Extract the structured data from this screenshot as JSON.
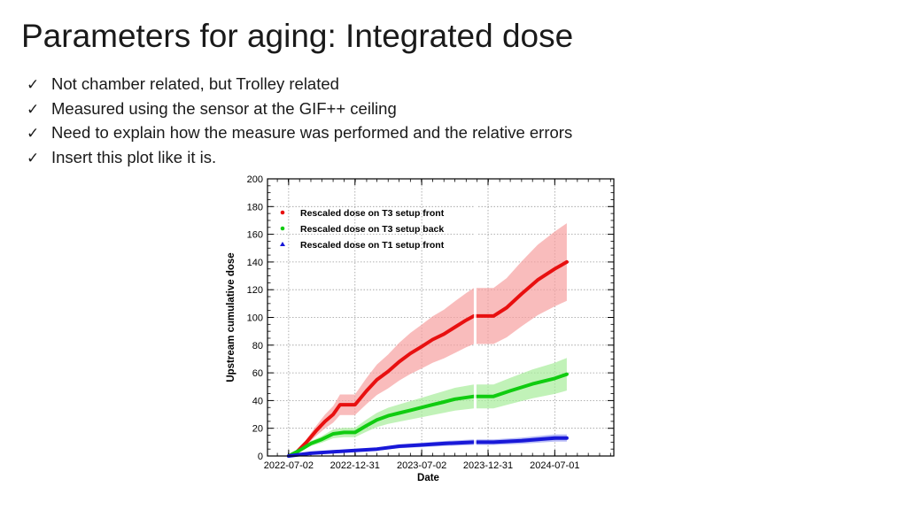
{
  "slide": {
    "title": "Parameters for aging: Integrated dose",
    "bullets": [
      "Not chamber related, but Trolley related",
      "Measured using the sensor at the GIF++ ceiling",
      "Need to explain how the measure was performed and the relative errors",
      "Insert this plot like it is."
    ],
    "bullet_icon": "check-icon"
  },
  "chart_data": {
    "type": "line",
    "title": "",
    "xlabel": "Date",
    "ylabel": "Upstream cumulative dose",
    "ylim": [
      0,
      200
    ],
    "xlim": [
      "2022-05-05",
      "2024-12-10"
    ],
    "yticks": [
      0,
      20,
      40,
      60,
      80,
      100,
      120,
      140,
      160,
      180,
      200
    ],
    "xticks": [
      "2022-07-02",
      "2022-12-31",
      "2023-07-02",
      "2023-12-31",
      "2024-07-01"
    ],
    "grid": true,
    "legend_position": "top-left",
    "series": [
      {
        "name": "Rescaled dose on T3 setup front",
        "color": "#e81010",
        "band_color": "#f6a0a0",
        "points": [
          [
            "2022-07-02",
            0
          ],
          [
            "2022-07-25",
            3
          ],
          [
            "2022-08-20",
            10
          ],
          [
            "2022-09-15",
            18
          ],
          [
            "2022-10-10",
            25
          ],
          [
            "2022-11-01",
            30
          ],
          [
            "2022-11-20",
            37
          ],
          [
            "2022-12-31",
            37
          ],
          [
            "2023-02-01",
            47
          ],
          [
            "2023-03-01",
            55
          ],
          [
            "2023-04-01",
            61
          ],
          [
            "2023-05-01",
            68
          ],
          [
            "2023-06-01",
            74
          ],
          [
            "2023-07-02",
            79
          ],
          [
            "2023-08-01",
            84
          ],
          [
            "2023-09-01",
            88
          ],
          [
            "2023-10-01",
            93
          ],
          [
            "2023-11-01",
            98
          ],
          [
            "2023-11-22",
            101
          ],
          [
            "2024-01-15",
            101
          ],
          [
            "2024-02-20",
            107
          ],
          [
            "2024-04-01",
            117
          ],
          [
            "2024-05-15",
            127
          ],
          [
            "2024-07-01",
            135
          ],
          [
            "2024-08-03",
            140
          ]
        ],
        "band_half_width_fraction": 0.2
      },
      {
        "name": "Rescaled dose on T3 setup back",
        "color": "#10cc10",
        "band_color": "#a6ec9a",
        "points": [
          [
            "2022-07-02",
            0
          ],
          [
            "2022-08-01",
            4
          ],
          [
            "2022-09-01",
            9
          ],
          [
            "2022-10-01",
            12
          ],
          [
            "2022-11-01",
            16
          ],
          [
            "2022-12-01",
            17
          ],
          [
            "2022-12-31",
            17
          ],
          [
            "2023-02-01",
            22
          ],
          [
            "2023-03-01",
            26
          ],
          [
            "2023-04-01",
            29
          ],
          [
            "2023-05-01",
            31
          ],
          [
            "2023-06-01",
            33
          ],
          [
            "2023-07-02",
            35
          ],
          [
            "2023-08-01",
            37
          ],
          [
            "2023-09-01",
            39
          ],
          [
            "2023-10-01",
            41
          ],
          [
            "2023-11-22",
            43
          ],
          [
            "2024-01-15",
            43
          ],
          [
            "2024-03-01",
            47
          ],
          [
            "2024-05-01",
            52
          ],
          [
            "2024-07-01",
            56
          ],
          [
            "2024-08-03",
            59
          ]
        ],
        "band_half_width_fraction": 0.2
      },
      {
        "name": "Rescaled dose on T1 setup front",
        "color": "#1818d8",
        "band_color": "#9aa0f2",
        "points": [
          [
            "2022-07-02",
            0
          ],
          [
            "2022-09-01",
            2
          ],
          [
            "2022-11-01",
            3
          ],
          [
            "2022-12-31",
            4
          ],
          [
            "2023-03-01",
            5
          ],
          [
            "2023-05-01",
            7
          ],
          [
            "2023-07-02",
            8
          ],
          [
            "2023-09-01",
            9
          ],
          [
            "2023-11-22",
            10
          ],
          [
            "2024-01-15",
            10
          ],
          [
            "2024-04-01",
            11
          ],
          [
            "2024-07-01",
            13
          ],
          [
            "2024-08-03",
            13
          ]
        ],
        "band_half_width_fraction": 0.2
      }
    ],
    "data_gap": [
      "2023-11-22",
      "2023-11-29"
    ]
  }
}
